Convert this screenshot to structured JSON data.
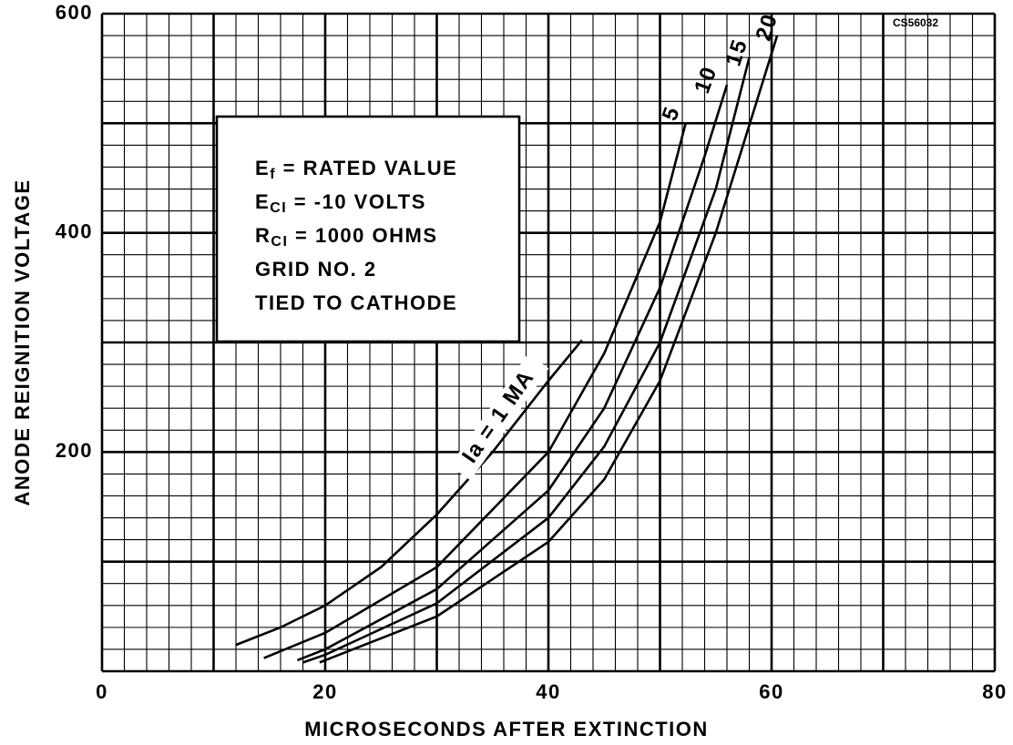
{
  "chart_data": {
    "type": "line",
    "corner_label": "CS56032",
    "x_label": "MICROSECONDS AFTER EXTINCTION",
    "y_label": "ANODE REIGNITION VOLTAGE",
    "xlim": [
      0,
      80
    ],
    "ylim": [
      0,
      600
    ],
    "xticks": [
      0,
      20,
      40,
      60,
      80
    ],
    "yticks": [
      200,
      400,
      600
    ],
    "xgrid_minor": [
      0,
      2,
      4,
      6,
      8,
      10,
      12,
      14,
      16,
      18,
      20,
      22,
      24,
      26,
      28,
      30,
      32,
      34,
      36,
      38,
      40,
      42,
      44,
      46,
      48,
      50,
      52,
      54,
      56,
      58,
      60,
      62,
      64,
      66,
      68,
      70,
      72,
      74,
      76,
      78,
      80
    ],
    "ygrid_minor": [
      0,
      20,
      40,
      60,
      80,
      100,
      120,
      140,
      160,
      180,
      200,
      220,
      240,
      260,
      280,
      300,
      320,
      340,
      360,
      380,
      400,
      420,
      440,
      460,
      480,
      500,
      520,
      540,
      560,
      580,
      600
    ],
    "xgrid_major": [
      0,
      10,
      20,
      30,
      40,
      50,
      60,
      70,
      80
    ],
    "ygrid_major": [
      0,
      100,
      200,
      300,
      400,
      500,
      600
    ],
    "annotation": [
      {
        "main": "E",
        "sub": "f",
        "rest": " = RATED VALUE"
      },
      {
        "main": "E",
        "sub": "CI",
        "rest": " = -10 VOLTS"
      },
      {
        "main": "R",
        "sub": "CI",
        "rest": " = 1000 OHMS"
      },
      {
        "main": "GRID NO. 2"
      },
      {
        "main": "TIED TO CATHODE"
      }
    ],
    "series": [
      {
        "name": "Ia = 1 MA",
        "color": "#000000",
        "x": [
          12,
          16,
          20,
          25,
          30,
          35,
          40,
          43
        ],
        "values": [
          24,
          40,
          60,
          95,
          143,
          200,
          265,
          302
        ]
      },
      {
        "name": "5",
        "color": "#000000",
        "x": [
          14.5,
          20,
          30,
          40,
          45,
          50,
          52.3
        ],
        "values": [
          12,
          35,
          95,
          200,
          290,
          410,
          500
        ]
      },
      {
        "name": "10",
        "color": "#000000",
        "x": [
          17.5,
          20,
          30,
          40,
          45,
          50,
          54,
          56
        ],
        "values": [
          10,
          20,
          75,
          165,
          240,
          350,
          470,
          535
        ]
      },
      {
        "name": "15",
        "color": "#000000",
        "x": [
          18,
          20,
          30,
          40,
          45,
          50,
          55,
          58
        ],
        "values": [
          8,
          15,
          62,
          140,
          205,
          300,
          440,
          560
        ]
      },
      {
        "name": "20",
        "color": "#000000",
        "x": [
          19.5,
          20,
          30,
          40,
          45,
          50,
          55,
          60.5
        ],
        "values": [
          8,
          10,
          50,
          118,
          175,
          265,
          400,
          580
        ]
      }
    ]
  }
}
